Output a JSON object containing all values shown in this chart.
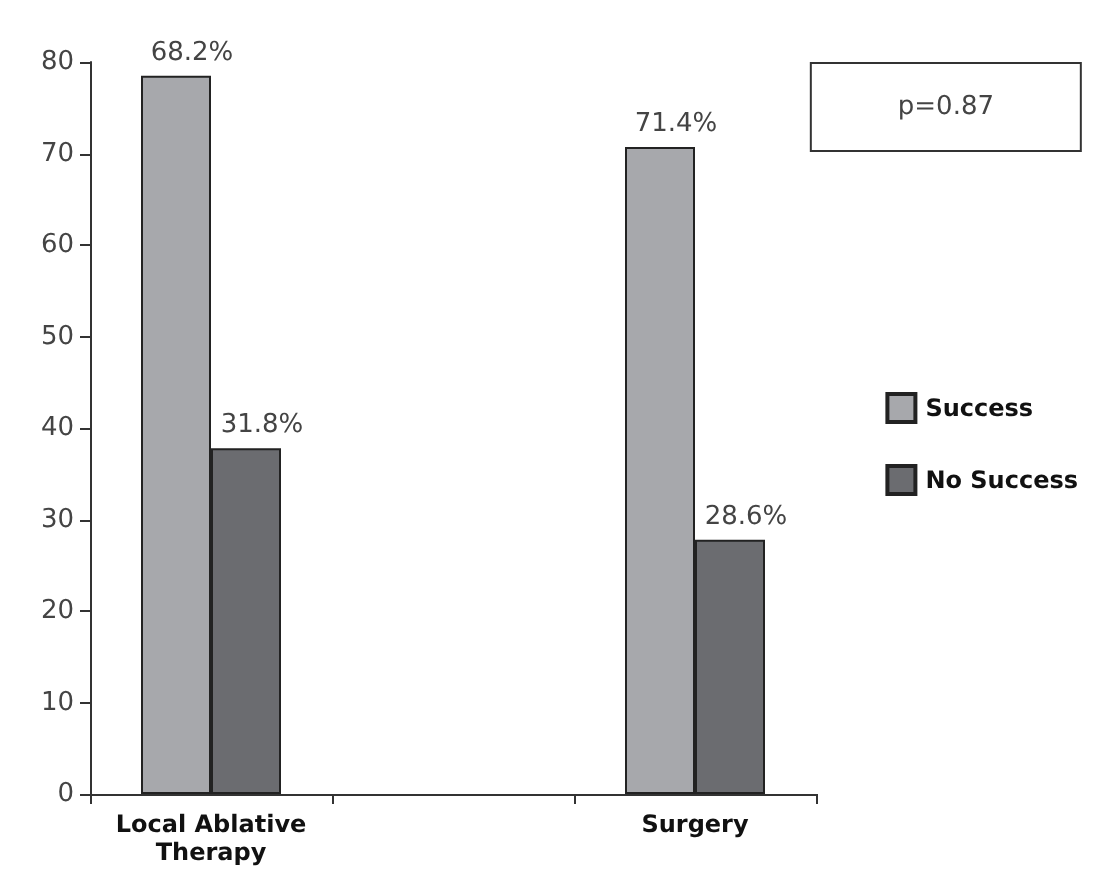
{
  "chart_data": {
    "type": "bar",
    "categories": [
      "Local Ablative\nTherapy",
      null,
      "Surgery"
    ],
    "series": [
      {
        "name": "Success",
        "color": "#a7a8ac",
        "values": [
          78.5,
          null,
          70.7
        ]
      },
      {
        "name": "No Success",
        "color": "#6b6c70",
        "values": [
          37.8,
          null,
          27.8
        ]
      }
    ],
    "ylim": [
      0,
      80
    ],
    "yticks": [
      0,
      10,
      20,
      30,
      40,
      50,
      60,
      70,
      80
    ],
    "grid": false,
    "legend": "right",
    "annotations": [
      "p=0.87",
      {
        "text": "68.2%",
        "x": "Local Ablative\nTherapy",
        "y": 78.5
      },
      {
        "text": "31.8%",
        "x": "Local Ablative\nTherapy",
        "y": 37.8
      },
      {
        "text": "71.4%",
        "x": "Surgery",
        "y": 70.7
      },
      {
        "text": "28.6%",
        "x": "Surgery",
        "y": 27.8
      }
    ]
  }
}
